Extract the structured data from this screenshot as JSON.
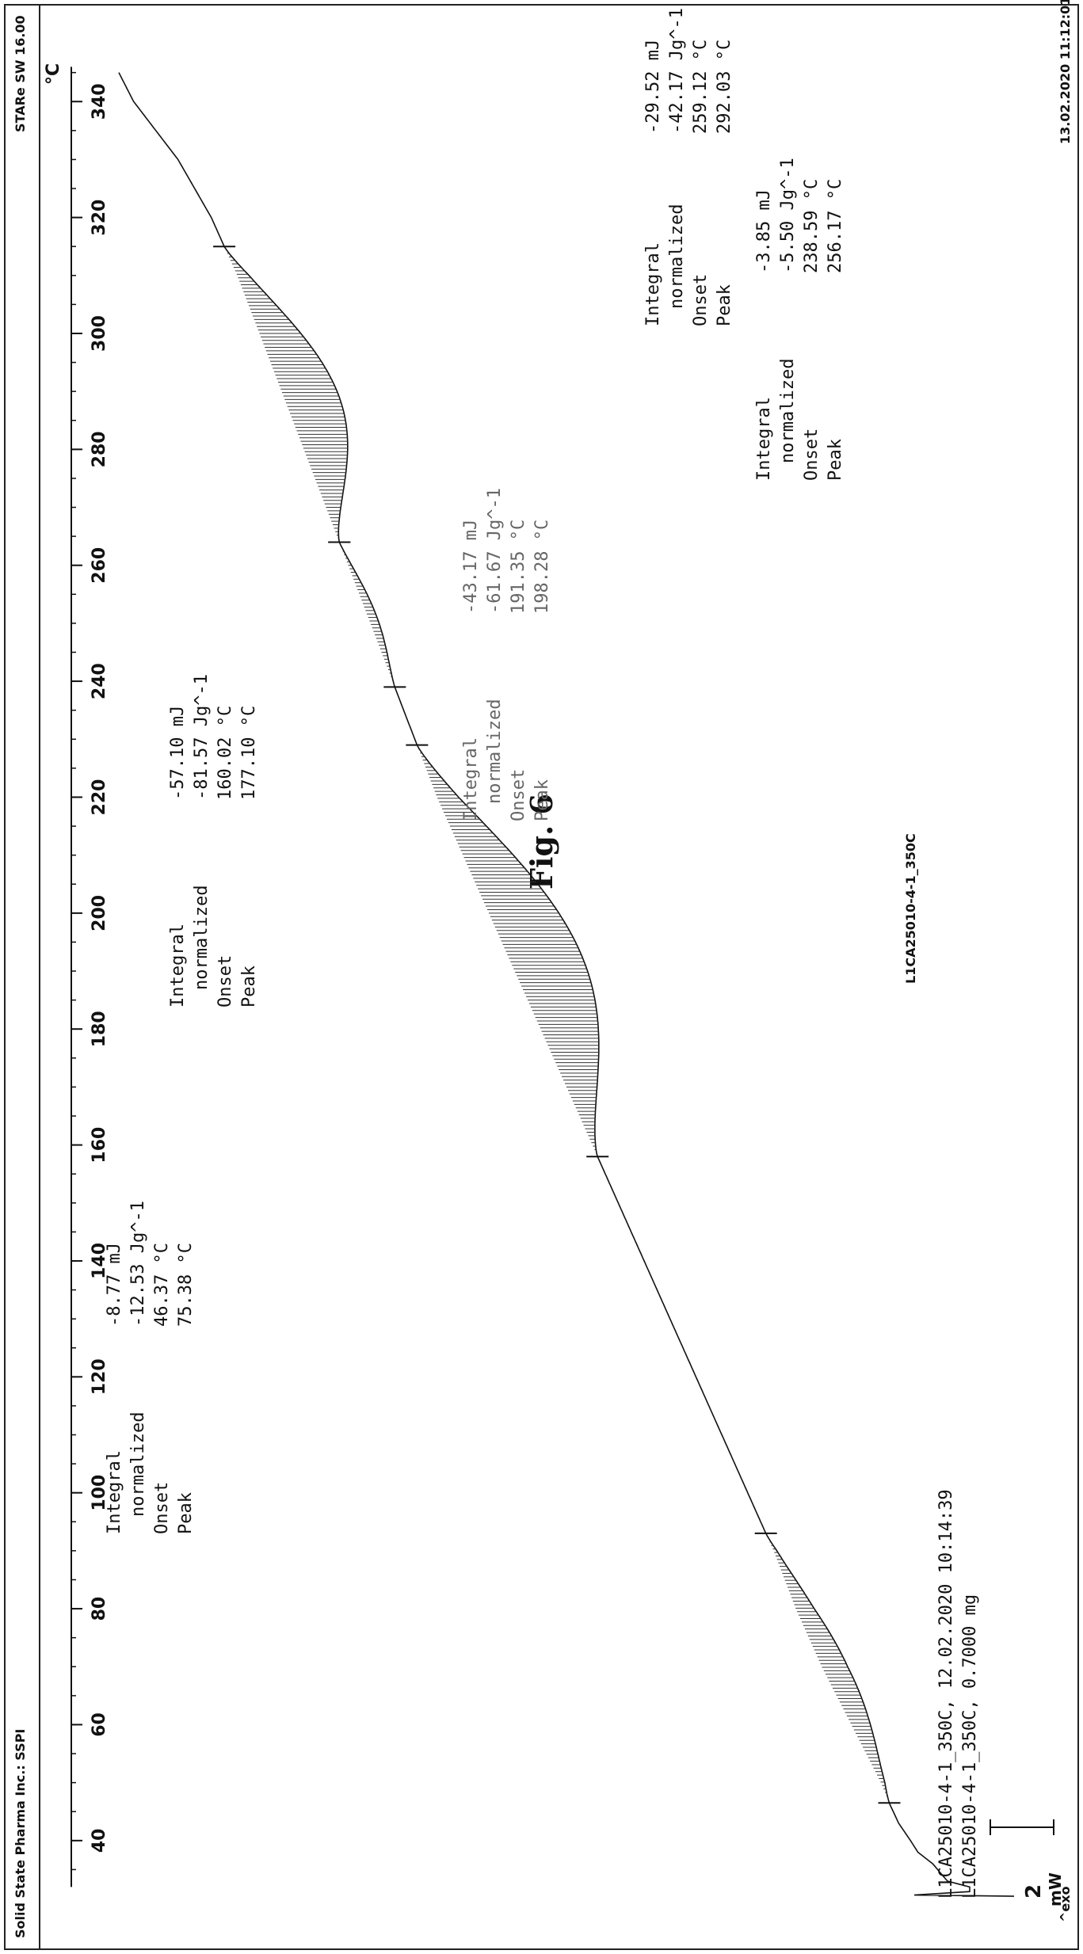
{
  "figure_caption": "Fig. 6",
  "header": {
    "top_left": "^exo",
    "sample_title": "L1CA25010-4-1_350C",
    "timestamp_right": "13.02.2020 11:12:01",
    "sample_lines": [
      "L1CA25010-4-1_350C, 12.02.2020 10:14:39",
      "L1CA25010-4-1_350C, 0.7000 mg"
    ],
    "scale_value": "2",
    "scale_unit": "mW"
  },
  "footer": {
    "left": "Solid State Pharma Inc.: SSPI",
    "right": "STARe SW 16.00"
  },
  "chart_data": {
    "type": "line",
    "title": "L1CA25010-4-1_350C",
    "xlabel": "°C",
    "ylabel": "mW",
    "x_ticks": [
      40,
      60,
      80,
      100,
      120,
      140,
      160,
      180,
      200,
      220,
      240,
      260,
      280,
      300,
      320,
      340
    ],
    "xlim": [
      30,
      347
    ],
    "grid": false,
    "series": [
      {
        "x": [
          30,
          33,
          36,
          38,
          40,
          43,
          46,
          50,
          60,
          70,
          80,
          90,
          100,
          110,
          120,
          130,
          140,
          150,
          160,
          170,
          180,
          190,
          200,
          210,
          220,
          230,
          240,
          250,
          260,
          270,
          280,
          290,
          300,
          310,
          320,
          330,
          340,
          345
        ],
        "y": [
          0.0,
          0.9,
          1.1,
          1.3,
          1.4,
          1.56,
          1.67,
          1.8,
          2.2,
          2.6,
          2.95,
          3.25,
          3.6,
          3.95,
          4.3,
          4.65,
          5.0,
          5.35,
          5.7,
          6.05,
          6.4,
          6.75,
          7.1,
          7.45,
          7.8,
          8.1,
          8.4,
          8.7,
          9.0,
          9.3,
          9.6,
          9.9,
          10.2,
          10.5,
          10.85,
          11.3,
          11.9,
          12.1
        ]
      }
    ],
    "peaks": [
      {
        "integral": "-8.77 mJ",
        "normalized": "-12.53 Jg^-1",
        "onset": "46.37 °C",
        "peak": "75.38 °C",
        "range": [
          46.5,
          93
        ],
        "depth": 0.35
      },
      {
        "integral": "-57.10 mJ",
        "normalized": "-81.57 Jg^-1",
        "onset": "160.02 °C",
        "peak": "177.10 °C",
        "range": [
          158,
          229
        ],
        "depth": 1.0
      },
      {
        "integral": "-43.17 mJ",
        "normalized": "-61.67 Jg^-1",
        "onset": "191.35 °C",
        "peak": "198.28 °C",
        "range": [
          180,
          229
        ],
        "depth": 0
      },
      {
        "integral": "-3.85 mJ",
        "normalized": "-5.50 Jg^-1",
        "onset": "238.59 °C",
        "peak": "256.17 °C",
        "range": [
          239,
          264
        ],
        "depth": 0.12
      },
      {
        "integral": "-29.52 mJ",
        "normalized": "-42.17 Jg^-1",
        "onset": "259.12 °C",
        "peak": "292.03 °C",
        "range": [
          264,
          315
        ],
        "depth": 0.75
      }
    ]
  },
  "labels": {
    "integral": "Integral",
    "normalized": "normalized",
    "onset": "Onset",
    "peak": "Peak"
  }
}
